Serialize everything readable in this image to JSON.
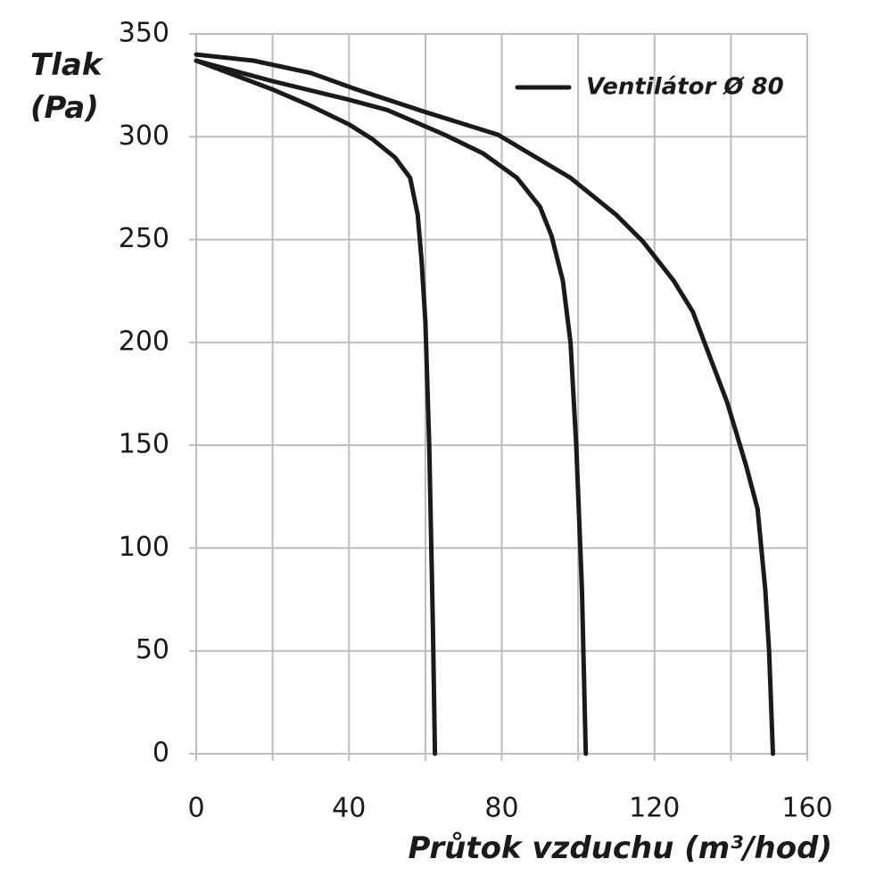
{
  "chart_data": {
    "type": "line",
    "ylabel": [
      "Tlak",
      "(Pa)"
    ],
    "xlabel": "Průtok vzduchu (m³/hod)",
    "xlim": [
      0,
      160
    ],
    "xticks": [
      0,
      40,
      80,
      120,
      160
    ],
    "x_minor_ticks": [
      20,
      60,
      100,
      140
    ],
    "ylim": [
      0,
      350
    ],
    "yticks": [
      0,
      50,
      100,
      150,
      200,
      250,
      300,
      350
    ],
    "grid": true,
    "legend": "upper right",
    "series": [
      {
        "name": "Ventilátor Ø 80",
        "color": "#1a1a1a",
        "x": [
          0,
          10,
          20,
          30,
          40,
          46,
          52,
          56,
          58,
          59,
          60,
          61,
          62,
          62.5
        ],
        "values": [
          337,
          330,
          323,
          315,
          306,
          299,
          290,
          280,
          262,
          240,
          210,
          150,
          60,
          0
        ]
      },
      {
        "color": "#1a1a1a",
        "x": [
          0,
          20,
          40,
          50,
          65,
          75,
          84,
          90,
          93,
          96,
          98,
          99.5,
          101,
          102
        ],
        "values": [
          337,
          327,
          318,
          313,
          301,
          292,
          280,
          266,
          252,
          230,
          200,
          150,
          80,
          0
        ]
      },
      {
        "color": "#1a1a1a",
        "x": [
          0,
          15,
          30,
          42,
          60,
          79,
          98,
          110,
          117,
          125,
          130,
          139,
          144,
          147,
          149,
          150,
          151
        ],
        "values": [
          340,
          337,
          331,
          323,
          312,
          301,
          280,
          262,
          249,
          230,
          215,
          171,
          140,
          119,
          80,
          50,
          0
        ]
      }
    ]
  }
}
